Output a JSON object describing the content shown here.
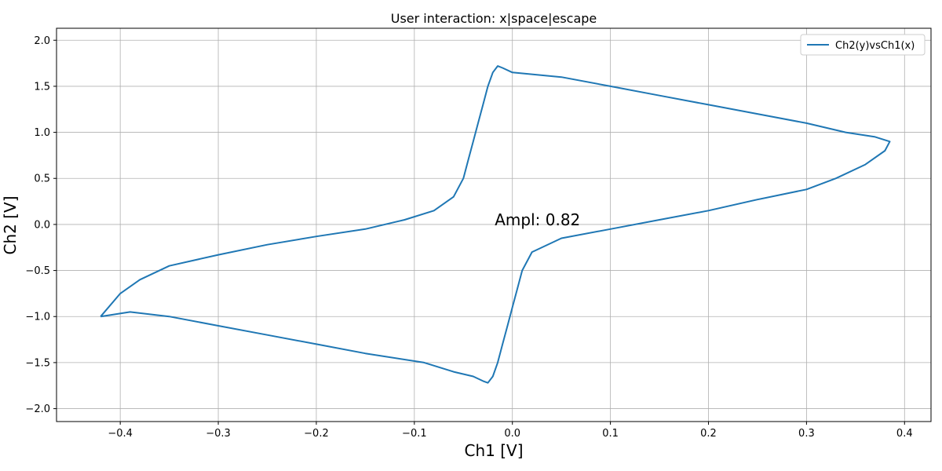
{
  "chart_data": {
    "type": "line",
    "title": "User interaction: x|space|escape",
    "xlabel": "Ch1 [V]",
    "ylabel": "Ch2 [V]",
    "xlim": [
      -0.465,
      0.427
    ],
    "ylim": [
      -2.14,
      2.13
    ],
    "xticks": [
      -0.4,
      -0.3,
      -0.2,
      -0.1,
      0.0,
      0.1,
      0.2,
      0.3,
      0.4
    ],
    "xtick_labels": [
      "−0.4",
      "−0.3",
      "−0.2",
      "−0.1",
      "0.0",
      "0.1",
      "0.2",
      "0.3",
      "0.4"
    ],
    "yticks": [
      -2.0,
      -1.5,
      -1.0,
      -0.5,
      0.0,
      0.5,
      1.0,
      1.5,
      2.0
    ],
    "ytick_labels": [
      "−2.0",
      "−1.5",
      "−1.0",
      "−0.5",
      "0.0",
      "0.5",
      "1.0",
      "1.5",
      "2.0"
    ],
    "grid": true,
    "legend_position": "top-right",
    "annotation": {
      "text": "Ampl: 0.82",
      "x": -0.018,
      "y": 0.0
    },
    "series": [
      {
        "name": "Ch2(y)vsCh1(x)",
        "color": "#1f77b4",
        "x": [
          -0.42,
          -0.4,
          -0.38,
          -0.35,
          -0.3,
          -0.25,
          -0.2,
          -0.15,
          -0.11,
          -0.08,
          -0.06,
          -0.05,
          -0.045,
          -0.04,
          -0.035,
          -0.03,
          -0.025,
          -0.02,
          -0.015,
          -0.01,
          0.0,
          0.05,
          0.1,
          0.15,
          0.2,
          0.25,
          0.3,
          0.34,
          0.37,
          0.385,
          0.38,
          0.36,
          0.33,
          0.3,
          0.25,
          0.2,
          0.15,
          0.1,
          0.05,
          0.02,
          0.01,
          0.005,
          0.0,
          -0.005,
          -0.01,
          -0.015,
          -0.02,
          -0.025,
          -0.03,
          -0.04,
          -0.06,
          -0.09,
          -0.15,
          -0.2,
          -0.25,
          -0.3,
          -0.35,
          -0.39,
          -0.42
        ],
        "y": [
          -1.0,
          -0.75,
          -0.6,
          -0.45,
          -0.33,
          -0.22,
          -0.13,
          -0.05,
          0.05,
          0.15,
          0.3,
          0.5,
          0.7,
          0.9,
          1.1,
          1.3,
          1.5,
          1.65,
          1.72,
          1.7,
          1.65,
          1.6,
          1.5,
          1.4,
          1.3,
          1.2,
          1.1,
          1.0,
          0.95,
          0.9,
          0.8,
          0.65,
          0.5,
          0.38,
          0.27,
          0.15,
          0.05,
          -0.05,
          -0.15,
          -0.3,
          -0.5,
          -0.7,
          -0.9,
          -1.1,
          -1.3,
          -1.5,
          -1.65,
          -1.72,
          -1.7,
          -1.65,
          -1.6,
          -1.5,
          -1.4,
          -1.3,
          -1.2,
          -1.1,
          -1.0,
          -0.95,
          -1.0
        ]
      }
    ]
  }
}
